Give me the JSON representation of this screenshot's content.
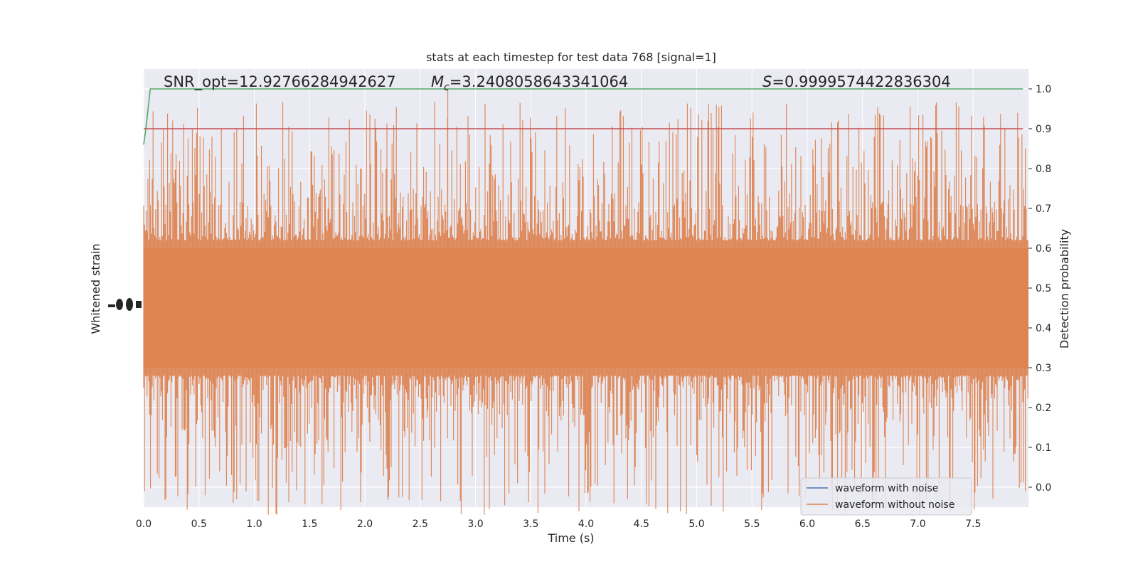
{
  "chart_data": {
    "type": "line",
    "title": "stats at each timestep for test data 768 [signal=1]",
    "xlabel": "Time (s)",
    "ylabel_left": "Whitened strain",
    "ylabel_right": "Detection probability",
    "xlim": [
      0.0,
      8.0
    ],
    "ylim_right": [
      -0.05,
      1.05
    ],
    "x_ticks": [
      "0.0",
      "0.5",
      "1.0",
      "1.5",
      "2.0",
      "2.5",
      "3.0",
      "3.5",
      "4.0",
      "4.5",
      "5.0",
      "5.5",
      "6.0",
      "6.5",
      "7.0",
      "7.5"
    ],
    "y_ticks_right": [
      "0.0",
      "0.1",
      "0.2",
      "0.3",
      "0.4",
      "0.5",
      "0.6",
      "0.7",
      "0.8",
      "0.9",
      "1.0"
    ],
    "grid": true,
    "background": "#eaeaf2",
    "annotations": {
      "snr": "SNR_opt=12.92766284942627",
      "mc_prefix": "M",
      "mc_sub": "c",
      "mc_value": "=3.2408058643341064",
      "s_prefix": "S",
      "s_value": "=0.9999574422836304"
    },
    "series": [
      {
        "name": "waveform with noise",
        "color": "#4c72b0",
        "values": []
      },
      {
        "name": "waveform without noise",
        "color": "#dd8452",
        "band": [
          0.3,
          0.6
        ],
        "peak_max": 1.0,
        "peak_at": 2.75
      },
      {
        "color": "#55a868",
        "x": [
          0.0,
          0.02,
          0.06,
          7.95
        ],
        "values": [
          0.86,
          0.9,
          1.0,
          1.0
        ]
      },
      {
        "color": "#c44e52",
        "x": [
          0.0,
          7.95
        ],
        "values": [
          0.9,
          0.9
        ]
      }
    ]
  }
}
